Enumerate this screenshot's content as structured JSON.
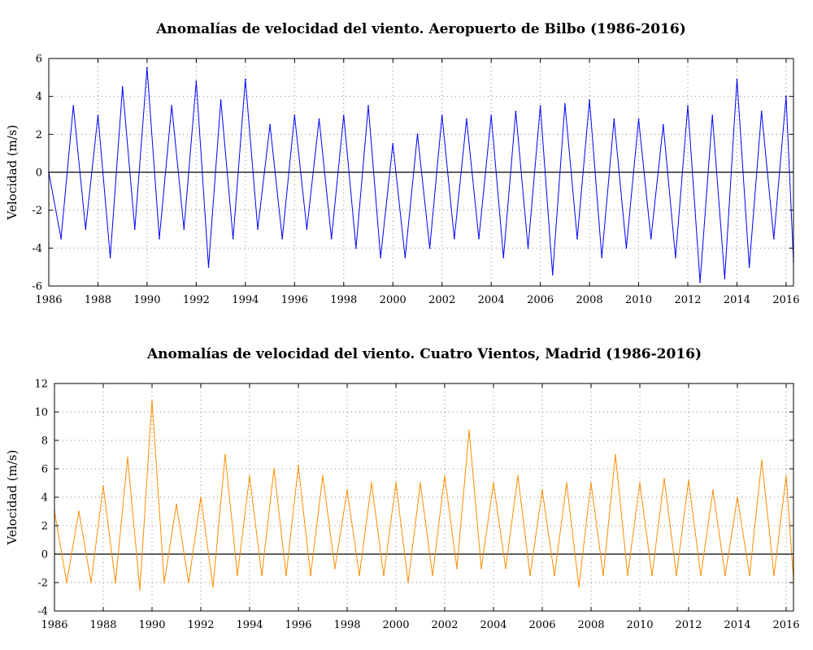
{
  "chart_data": [
    {
      "type": "line",
      "title": "Anomalías de velocidad del viento. Aeropuerto de Bilbo (1986-2016)",
      "xlabel": "",
      "ylabel": "Velocidad (m/s)",
      "xlim": [
        1986,
        2016.3
      ],
      "ylim": [
        -6,
        6
      ],
      "xticks": [
        "1986",
        "1988",
        "1990",
        "1992",
        "1994",
        "1996",
        "1998",
        "2000",
        "2002",
        "2004",
        "2006",
        "2008",
        "2010",
        "2012",
        "2014",
        "2016"
      ],
      "yticks": [
        "-6",
        "-4",
        "-2",
        "0",
        "2",
        "4",
        "6"
      ],
      "grid": true,
      "series": [
        {
          "color": "#0000ff",
          "x": [
            1986.0,
            1986.5,
            1987.0,
            1987.5,
            1988.0,
            1988.5,
            1989.0,
            1989.5,
            1990.0,
            1990.5,
            1991.0,
            1991.5,
            1992.0,
            1992.5,
            1993.0,
            1993.5,
            1994.0,
            1994.5,
            1995.0,
            1995.5,
            1996.0,
            1996.5,
            1997.0,
            1997.5,
            1998.0,
            1998.5,
            1999.0,
            1999.5,
            2000.0,
            2000.5,
            2001.0,
            2001.5,
            2002.0,
            2002.5,
            2003.0,
            2003.5,
            2004.0,
            2004.5,
            2005.0,
            2005.5,
            2006.0,
            2006.5,
            2007.0,
            2007.5,
            2008.0,
            2008.5,
            2009.0,
            2009.5,
            2010.0,
            2010.5,
            2011.0,
            2011.5,
            2012.0,
            2012.5,
            2013.0,
            2013.5,
            2014.0,
            2014.5,
            2015.0,
            2015.5,
            2016.0,
            2016.3
          ],
          "values": [
            0.0,
            -3.5,
            3.5,
            -3.0,
            3.0,
            -4.5,
            4.5,
            -3.0,
            5.5,
            -3.5,
            3.5,
            -3.0,
            4.8,
            -5.0,
            3.8,
            -3.5,
            4.9,
            -3.0,
            2.5,
            -3.5,
            3.0,
            -3.0,
            2.8,
            -3.5,
            3.0,
            -4.0,
            3.5,
            -4.5,
            1.5,
            -4.5,
            2.0,
            -4.0,
            3.0,
            -3.5,
            2.8,
            -3.5,
            3.0,
            -4.5,
            3.2,
            -4.0,
            3.5,
            -5.4,
            3.6,
            -3.5,
            3.8,
            -4.5,
            2.8,
            -4.0,
            2.8,
            -3.5,
            2.5,
            -4.5,
            3.5,
            -5.8,
            3.0,
            -5.6,
            4.9,
            -5.0,
            3.2,
            -3.5,
            4.0,
            -4.7
          ]
        }
      ]
    },
    {
      "type": "line",
      "title": "Anomalías de velocidad del viento. Cuatro Vientos, Madrid (1986-2016)",
      "xlabel": "",
      "ylabel": "Velocidad (m/s)",
      "xlim": [
        1986,
        2016.3
      ],
      "ylim": [
        -4,
        12
      ],
      "xticks": [
        "1986",
        "1988",
        "1990",
        "1992",
        "1994",
        "1996",
        "1998",
        "2000",
        "2002",
        "2004",
        "2006",
        "2008",
        "2010",
        "2012",
        "2014",
        "2016"
      ],
      "yticks": [
        "-4",
        "-2",
        "0",
        "2",
        "4",
        "6",
        "8",
        "10",
        "12"
      ],
      "grid": true,
      "series": [
        {
          "color": "#ff8c00",
          "x": [
            1986.0,
            1986.5,
            1987.0,
            1987.5,
            1988.0,
            1988.5,
            1989.0,
            1989.5,
            1990.0,
            1990.5,
            1991.0,
            1991.5,
            1992.0,
            1992.5,
            1993.0,
            1993.5,
            1994.0,
            1994.5,
            1995.0,
            1995.5,
            1996.0,
            1996.5,
            1997.0,
            1997.5,
            1998.0,
            1998.5,
            1999.0,
            1999.5,
            2000.0,
            2000.5,
            2001.0,
            2001.5,
            2002.0,
            2002.5,
            2003.0,
            2003.5,
            2004.0,
            2004.5,
            2005.0,
            2005.5,
            2006.0,
            2006.5,
            2007.0,
            2007.5,
            2008.0,
            2008.5,
            2009.0,
            2009.5,
            2010.0,
            2010.5,
            2011.0,
            2011.5,
            2012.0,
            2012.5,
            2013.0,
            2013.5,
            2014.0,
            2014.5,
            2015.0,
            2015.5,
            2016.0,
            2016.3
          ],
          "values": [
            3.0,
            -2.0,
            3.0,
            -2.0,
            4.8,
            -2.0,
            6.8,
            -2.5,
            10.8,
            -2.0,
            3.5,
            -2.0,
            4.0,
            -2.3,
            7.0,
            -1.5,
            5.5,
            -1.5,
            6.0,
            -1.5,
            6.2,
            -1.5,
            5.5,
            -1.0,
            4.5,
            -1.5,
            5.0,
            -1.5,
            5.0,
            -2.0,
            5.0,
            -1.5,
            5.5,
            -1.0,
            8.7,
            -1.0,
            5.0,
            -1.0,
            5.5,
            -1.5,
            4.5,
            -1.5,
            5.0,
            -2.3,
            5.0,
            -1.5,
            7.0,
            -1.5,
            5.0,
            -1.5,
            5.3,
            -1.5,
            5.2,
            -1.5,
            4.5,
            -1.5,
            4.0,
            -1.5,
            6.6,
            -1.5,
            5.5,
            -1.8
          ]
        }
      ]
    }
  ]
}
